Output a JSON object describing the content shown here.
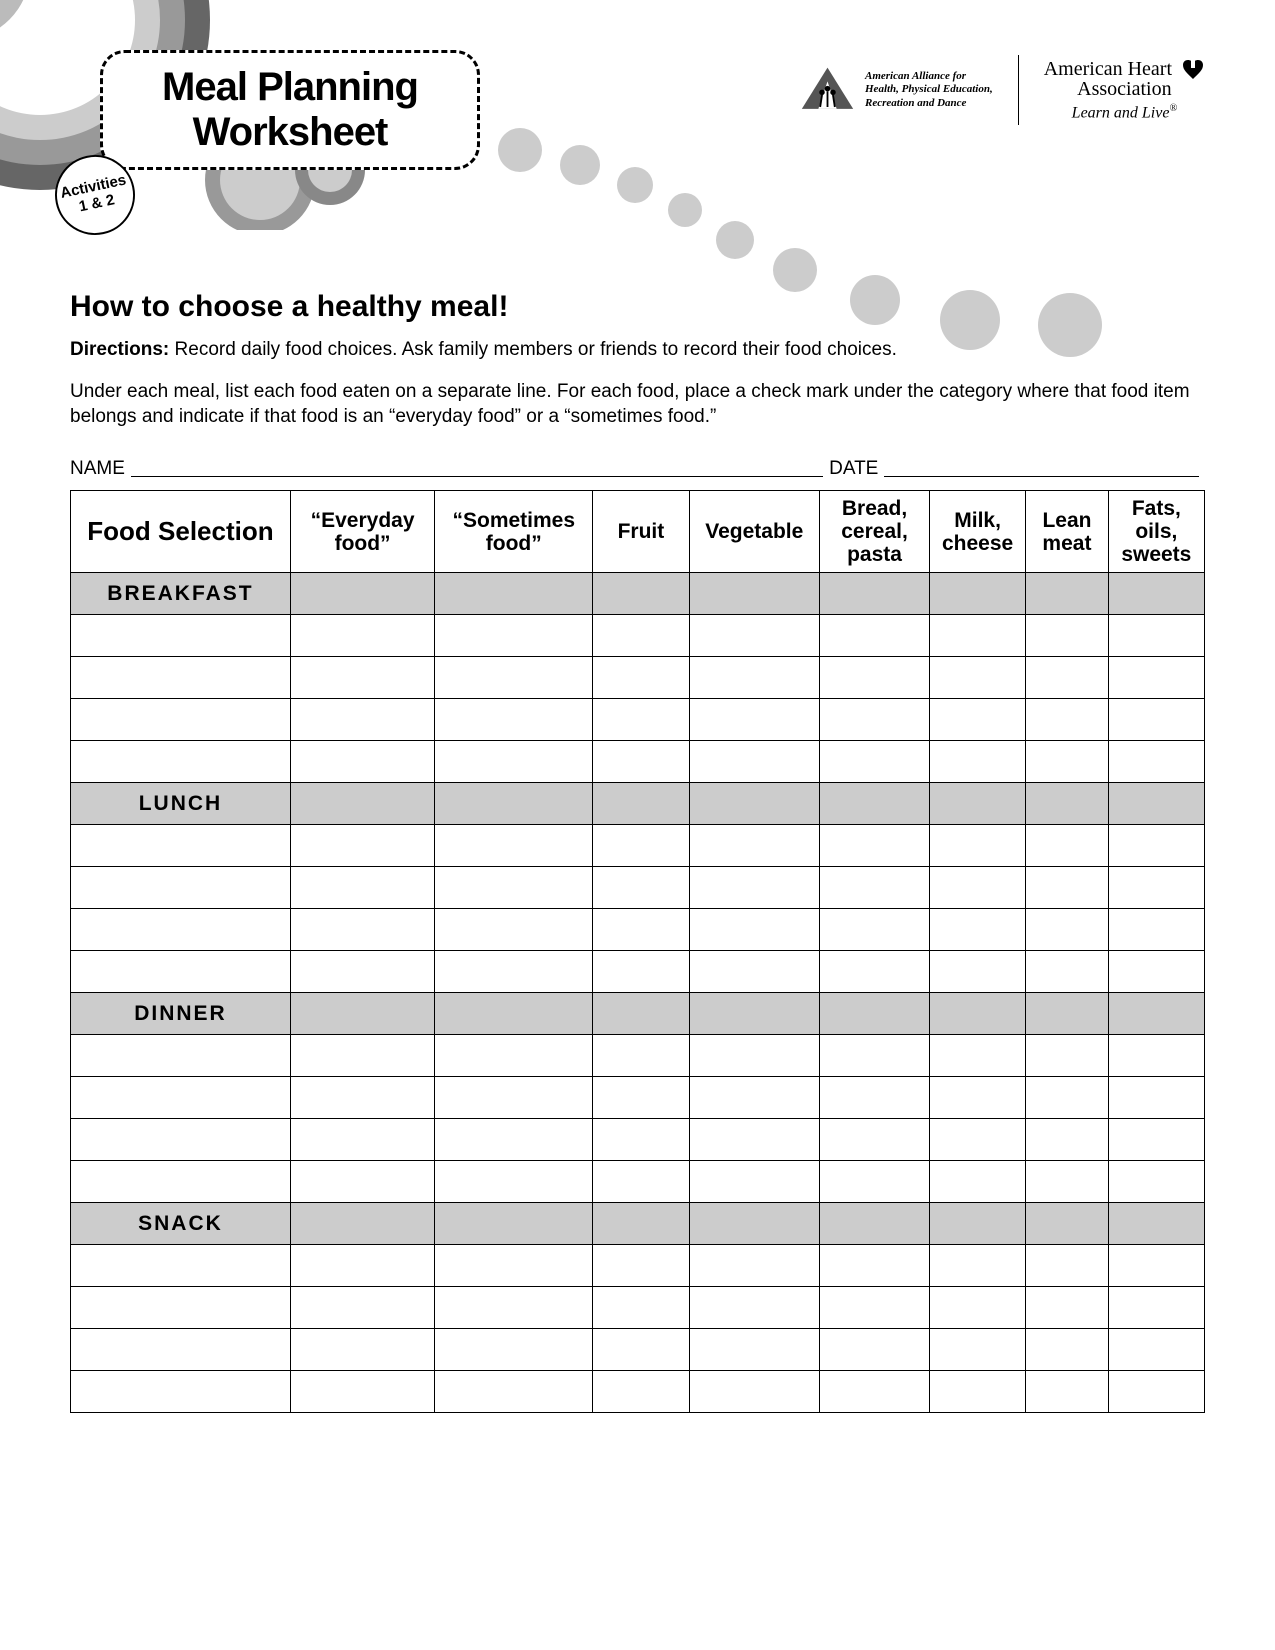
{
  "colors": {
    "bg": "#ffffff",
    "gray_light": "#cccccc",
    "gray_mid": "#999999",
    "gray_dark": "#666666",
    "border": "#000000"
  },
  "header": {
    "title_line1": "Meal Planning",
    "title_line2": "Worksheet",
    "activities_label": "Activities",
    "activities_nums": "1 & 2"
  },
  "logos": {
    "aahperd_line1": "American Alliance for",
    "aahperd_line2": "Health, Physical Education,",
    "aahperd_line3": "Recreation and Dance",
    "aha_top": "American Heart",
    "aha_top2": "Association",
    "aha_bottom": "Learn and Live",
    "aha_mark": "®"
  },
  "body": {
    "subhead": "How to choose a healthy meal!",
    "directions_label": "Directions:",
    "directions_text": " Record daily food choices. Ask family members or friends to record their food choices.",
    "para2": "Under each meal, list each food eaten on a separate line. For each food, place a check mark under the category where that food item belongs and indicate if that food is an “everyday food” or a “sometimes food.”",
    "name_label": "NAME",
    "date_label": "DATE"
  },
  "table": {
    "columns": [
      "Food Selection",
      "“Everyday food”",
      "“Sometimes food”",
      "Fruit",
      "Vegetable",
      "Bread, cereal, pasta",
      "Milk, cheese",
      "Lean meat",
      "Fats, oils, sweets"
    ],
    "sections": [
      {
        "label": "BREAKFAST",
        "rows": 4
      },
      {
        "label": "LUNCH",
        "rows": 4
      },
      {
        "label": "DINNER",
        "rows": 4
      },
      {
        "label": "SNACK",
        "rows": 4
      }
    ]
  }
}
